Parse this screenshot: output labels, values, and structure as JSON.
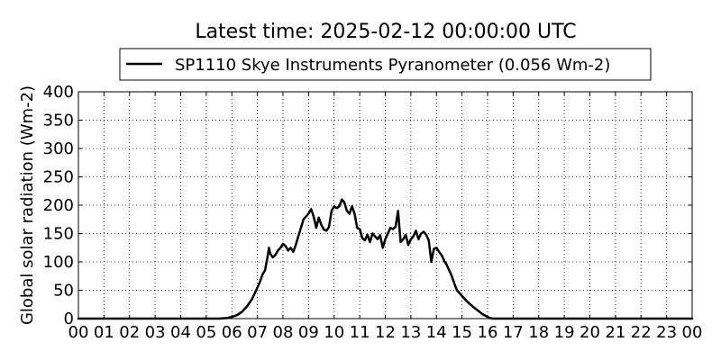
{
  "chart_data": {
    "type": "line",
    "title": "Latest time: 2025-02-12 00:00:00 UTC",
    "xlabel": "",
    "ylabel": "Global solar radiation (Wm-2)",
    "xlim": [
      0,
      24
    ],
    "ylim": [
      0,
      400
    ],
    "grid": true,
    "grid_style": "dotted",
    "legend_position": "top-center",
    "x_tick_labels": [
      "00",
      "01",
      "02",
      "03",
      "04",
      "05",
      "06",
      "07",
      "08",
      "09",
      "10",
      "11",
      "12",
      "13",
      "14",
      "15",
      "16",
      "17",
      "18",
      "19",
      "20",
      "21",
      "22",
      "23",
      "00"
    ],
    "y_tick_labels": [
      "0",
      "50",
      "100",
      "150",
      "200",
      "250",
      "300",
      "350",
      "400"
    ],
    "series": [
      {
        "name": "SP1110 Skye Instruments Pyranometer (0.056 Wm-2)",
        "color": "#000000",
        "x": [
          0,
          5.5,
          5.8,
          6.0,
          6.2,
          6.4,
          6.6,
          6.8,
          7.0,
          7.1,
          7.2,
          7.3,
          7.4,
          7.45,
          7.5,
          7.6,
          7.7,
          7.8,
          7.9,
          8.0,
          8.1,
          8.2,
          8.3,
          8.4,
          8.5,
          8.6,
          8.7,
          8.8,
          8.9,
          9.0,
          9.1,
          9.2,
          9.25,
          9.3,
          9.4,
          9.5,
          9.6,
          9.7,
          9.8,
          9.9,
          10.0,
          10.1,
          10.2,
          10.3,
          10.4,
          10.5,
          10.6,
          10.7,
          10.8,
          10.9,
          11.0,
          11.1,
          11.2,
          11.3,
          11.4,
          11.5,
          11.6,
          11.7,
          11.8,
          11.9,
          12.0,
          12.1,
          12.2,
          12.3,
          12.4,
          12.5,
          12.6,
          12.7,
          12.8,
          12.9,
          13.0,
          13.1,
          13.2,
          13.3,
          13.4,
          13.5,
          13.6,
          13.7,
          13.8,
          13.9,
          14.0,
          14.1,
          14.2,
          14.25,
          14.3,
          14.4,
          14.5,
          14.6,
          14.7,
          14.8,
          14.9,
          15.0,
          15.2,
          15.4,
          15.6,
          15.8,
          16.0,
          16.1,
          16.2,
          16.3,
          16.5,
          17.0,
          24
        ],
        "values": [
          0,
          0,
          1,
          3,
          6,
          12,
          22,
          35,
          55,
          65,
          78,
          85,
          110,
          125,
          115,
          108,
          112,
          120,
          125,
          132,
          128,
          120,
          125,
          118,
          130,
          145,
          160,
          175,
          180,
          185,
          193,
          180,
          170,
          160,
          178,
          165,
          157,
          155,
          162,
          190,
          198,
          195,
          198,
          210,
          205,
          190,
          185,
          198,
          185,
          160,
          158,
          142,
          138,
          148,
          135,
          150,
          145,
          140,
          147,
          125,
          140,
          150,
          160,
          158,
          162,
          190,
          135,
          140,
          148,
          130,
          140,
          145,
          155,
          140,
          150,
          153,
          148,
          138,
          100,
          123,
          125,
          118,
          112,
          108,
          102,
          95,
          85,
          75,
          62,
          50,
          45,
          40,
          30,
          22,
          15,
          8,
          3,
          1,
          0,
          0,
          0,
          0,
          0
        ]
      }
    ]
  }
}
